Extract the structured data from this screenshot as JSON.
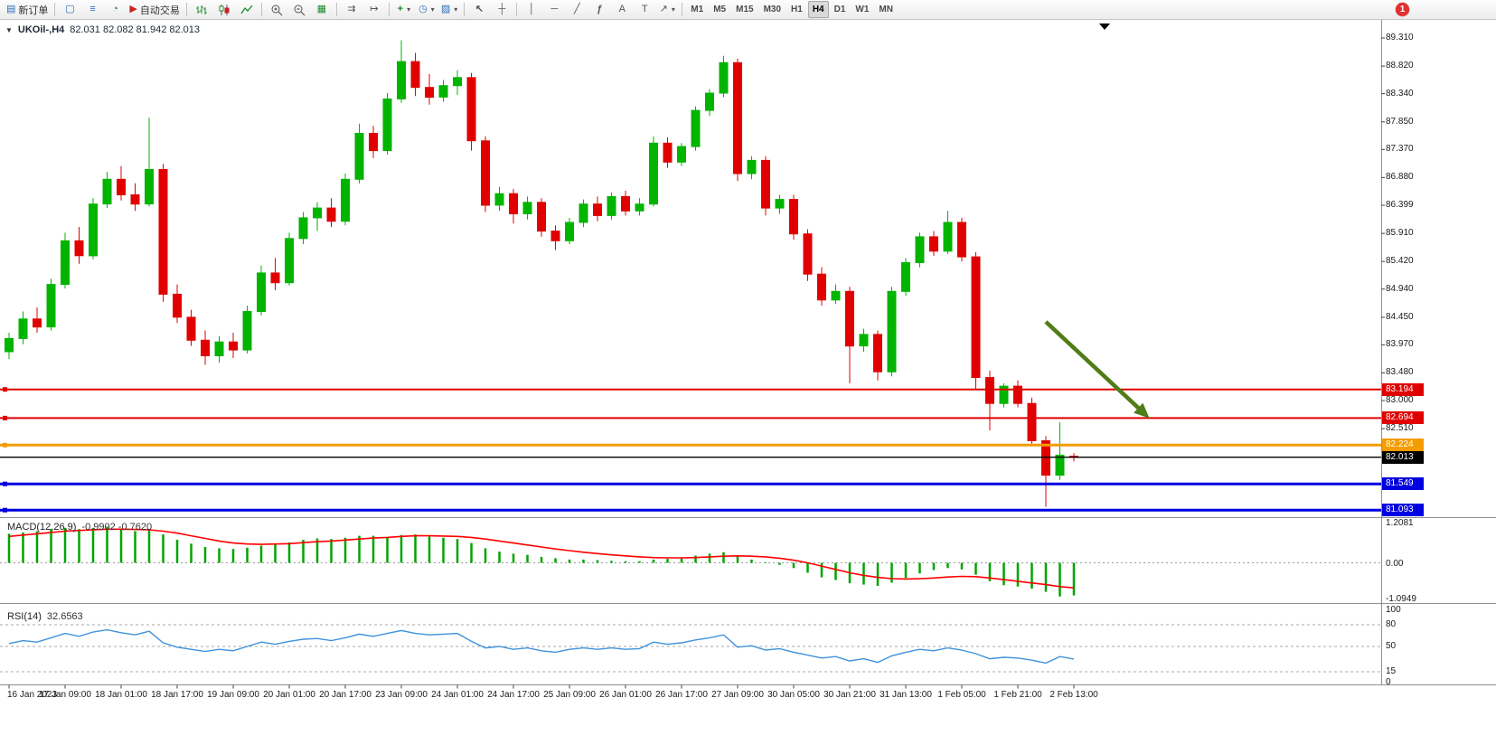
{
  "toolbar": {
    "new_order_label": "新订单",
    "auto_trading_label": "自动交易",
    "notification_badge": "1",
    "timeframes": [
      "M1",
      "M5",
      "M15",
      "M30",
      "H1",
      "H4",
      "D1",
      "W1",
      "MN"
    ],
    "active_timeframe": "H4",
    "icons": {
      "new_order": "▤",
      "chart_window": "▢",
      "accounts": "≡",
      "refresh": "◔",
      "play": "▶",
      "tile": "▦",
      "auto_scroll": "⇉",
      "chart_shift": "↦",
      "indicators_plus": "+",
      "clock": "◷",
      "template": "▨",
      "cursor": "↖",
      "crosshair": "┼",
      "vline": "│",
      "hline": "─",
      "trendline": "╱",
      "fibonacci": "ƒ",
      "text": "A",
      "text_label": "T",
      "arrow_tool": "↗",
      "caret": "▾"
    }
  },
  "chart": {
    "dropdown_marker": "▼",
    "title": "UKOil-,H4",
    "ohlc": "82.031 82.082 81.942 82.013"
  },
  "chart_data": {
    "type": "candlestick",
    "symbol": "UKOil-",
    "period": "H4",
    "current": {
      "open": 82.031,
      "high": 82.082,
      "low": 81.942,
      "close": 82.013
    },
    "up_color": "#00b400",
    "down_color": "#e00000",
    "y_axis_labels": [
      "89.310",
      "88.820",
      "88.340",
      "87.850",
      "87.370",
      "86.880",
      "86.399",
      "85.910",
      "85.420",
      "84.940",
      "84.450",
      "83.970",
      "83.480",
      "83.000",
      "82.510"
    ],
    "x_labels": [
      "16 Jan 2023",
      "17 Jan 09:00",
      "18 Jan 01:00",
      "18 Jan 17:00",
      "19 Jan 09:00",
      "20 Jan 01:00",
      "20 Jan 17:00",
      "23 Jan 09:00",
      "24 Jan 01:00",
      "24 Jan 17:00",
      "25 Jan 09:00",
      "26 Jan 01:00",
      "26 Jan 17:00",
      "27 Jan 09:00",
      "30 Jan 05:00",
      "30 Jan 21:00",
      "31 Jan 13:00",
      "1 Feb 05:00",
      "1 Feb 21:00",
      "2 Feb 13:00"
    ],
    "candles": [
      [
        83.85,
        84.18,
        83.72,
        84.08
      ],
      [
        84.08,
        84.55,
        83.98,
        84.42
      ],
      [
        84.42,
        84.62,
        84.18,
        84.28
      ],
      [
        84.28,
        85.12,
        84.22,
        85.02
      ],
      [
        85.02,
        85.92,
        84.95,
        85.78
      ],
      [
        85.78,
        86.02,
        85.38,
        85.52
      ],
      [
        85.52,
        86.52,
        85.46,
        86.42
      ],
      [
        86.42,
        86.98,
        86.35,
        86.85
      ],
      [
        86.85,
        87.08,
        86.48,
        86.58
      ],
      [
        86.58,
        86.78,
        86.3,
        86.42
      ],
      [
        86.42,
        87.92,
        86.38,
        87.02
      ],
      [
        87.02,
        87.12,
        84.72,
        84.85
      ],
      [
        84.85,
        85.02,
        84.35,
        84.45
      ],
      [
        84.45,
        84.58,
        83.95,
        84.05
      ],
      [
        84.05,
        84.22,
        83.62,
        83.78
      ],
      [
        83.78,
        84.12,
        83.66,
        84.02
      ],
      [
        84.02,
        84.18,
        83.74,
        83.88
      ],
      [
        83.88,
        84.65,
        83.82,
        84.55
      ],
      [
        84.55,
        85.35,
        84.48,
        85.22
      ],
      [
        85.22,
        85.48,
        84.92,
        85.05
      ],
      [
        85.05,
        85.92,
        85.0,
        85.82
      ],
      [
        85.82,
        86.28,
        85.72,
        86.18
      ],
      [
        86.18,
        86.45,
        85.95,
        86.35
      ],
      [
        86.35,
        86.52,
        86.02,
        86.12
      ],
      [
        86.12,
        86.95,
        86.05,
        86.85
      ],
      [
        86.85,
        87.82,
        86.78,
        87.65
      ],
      [
        87.65,
        87.78,
        87.22,
        87.35
      ],
      [
        87.35,
        88.35,
        87.28,
        88.25
      ],
      [
        88.25,
        89.27,
        88.18,
        88.9
      ],
      [
        88.9,
        89.05,
        88.3,
        88.45
      ],
      [
        88.45,
        88.68,
        88.15,
        88.28
      ],
      [
        88.28,
        88.58,
        88.2,
        88.48
      ],
      [
        88.48,
        88.75,
        88.32,
        88.62
      ],
      [
        88.62,
        88.7,
        87.35,
        87.52
      ],
      [
        87.52,
        87.6,
        86.28,
        86.4
      ],
      [
        86.4,
        86.72,
        86.3,
        86.6
      ],
      [
        86.6,
        86.68,
        86.08,
        86.25
      ],
      [
        86.25,
        86.55,
        86.15,
        86.45
      ],
      [
        86.45,
        86.52,
        85.85,
        85.95
      ],
      [
        85.95,
        86.05,
        85.62,
        85.78
      ],
      [
        85.78,
        86.18,
        85.72,
        86.1
      ],
      [
        86.1,
        86.5,
        86.02,
        86.42
      ],
      [
        86.42,
        86.55,
        86.12,
        86.22
      ],
      [
        86.22,
        86.62,
        86.15,
        86.55
      ],
      [
        86.55,
        86.65,
        86.22,
        86.3
      ],
      [
        86.3,
        86.52,
        86.22,
        86.42
      ],
      [
        86.42,
        87.6,
        86.38,
        87.48
      ],
      [
        87.48,
        87.58,
        87.05,
        87.15
      ],
      [
        87.15,
        87.48,
        87.08,
        87.42
      ],
      [
        87.42,
        88.12,
        87.35,
        88.05
      ],
      [
        88.05,
        88.42,
        87.95,
        88.35
      ],
      [
        88.35,
        89.0,
        88.28,
        88.88
      ],
      [
        88.88,
        88.95,
        86.82,
        86.95
      ],
      [
        86.95,
        87.25,
        86.85,
        87.18
      ],
      [
        87.18,
        87.25,
        86.22,
        86.35
      ],
      [
        86.35,
        86.58,
        86.25,
        86.5
      ],
      [
        86.5,
        86.58,
        85.8,
        85.9
      ],
      [
        85.9,
        85.98,
        85.08,
        85.2
      ],
      [
        85.2,
        85.32,
        84.65,
        84.75
      ],
      [
        84.75,
        85.02,
        84.68,
        84.9
      ],
      [
        84.9,
        84.98,
        83.3,
        83.95
      ],
      [
        83.95,
        84.25,
        83.85,
        84.15
      ],
      [
        84.15,
        84.22,
        83.35,
        83.5
      ],
      [
        83.5,
        84.98,
        83.42,
        84.9
      ],
      [
        84.9,
        85.48,
        84.82,
        85.4
      ],
      [
        85.4,
        85.92,
        85.32,
        85.85
      ],
      [
        85.85,
        85.95,
        85.52,
        85.6
      ],
      [
        85.6,
        86.3,
        85.55,
        86.1
      ],
      [
        86.1,
        86.18,
        85.42,
        85.5
      ],
      [
        85.5,
        85.58,
        83.2,
        83.4
      ],
      [
        83.4,
        83.52,
        82.48,
        82.95
      ],
      [
        82.95,
        83.3,
        82.88,
        83.25
      ],
      [
        83.25,
        83.35,
        82.88,
        82.95
      ],
      [
        82.95,
        83.05,
        82.22,
        82.3
      ],
      [
        82.3,
        82.38,
        81.15,
        81.7
      ],
      [
        81.7,
        82.62,
        81.62,
        82.05
      ],
      [
        82.031,
        82.082,
        81.942,
        82.013
      ]
    ],
    "hlines": [
      {
        "price": 83.194,
        "label": "83.194",
        "color": "#e00000",
        "width": 2
      },
      {
        "price": 82.694,
        "label": "82.694",
        "color": "#e00000",
        "width": 2
      },
      {
        "price": 82.224,
        "label": "82.224",
        "color": "#f49c00",
        "width": 3
      },
      {
        "price": 81.549,
        "label": "81.549",
        "color": "#0000e0",
        "width": 3
      },
      {
        "price": 81.093,
        "label": "81.093",
        "color": "#0000e0",
        "width": 3
      }
    ],
    "current_price": {
      "value": 82.013,
      "label": "82.013",
      "color": "#000000"
    },
    "trend_arrow": {
      "from_bar": 74,
      "from_price": 84.37,
      "to_bar": 81.4,
      "to_price": 82.69,
      "color": "#4f7d18"
    },
    "macd": {
      "name": "MACD(12,26,9)",
      "values_text": "-0.9902 -0.7620",
      "macd_value": -0.9902,
      "signal_value": -0.762,
      "axis": [
        {
          "text": "1.2081",
          "value": 1.2081
        },
        {
          "text": "0.00",
          "value": 0
        },
        {
          "text": "-1.0949",
          "value": -1.0949
        }
      ],
      "histogram_color": "#00a400",
      "signal_color": "#ff0000",
      "histogram": [
        0.88,
        0.92,
        0.96,
        1.02,
        1.06,
        1.02,
        1.06,
        1.1,
        1.02,
        0.96,
        1.0,
        0.86,
        0.7,
        0.58,
        0.48,
        0.44,
        0.42,
        0.46,
        0.52,
        0.56,
        0.62,
        0.7,
        0.74,
        0.72,
        0.76,
        0.82,
        0.82,
        0.78,
        0.84,
        0.86,
        0.8,
        0.76,
        0.72,
        0.6,
        0.44,
        0.34,
        0.28,
        0.24,
        0.18,
        0.14,
        0.1,
        0.1,
        0.08,
        0.06,
        0.05,
        0.05,
        0.1,
        0.12,
        0.16,
        0.22,
        0.28,
        0.32,
        0.2,
        0.1,
        0.02,
        -0.06,
        -0.16,
        -0.3,
        -0.44,
        -0.52,
        -0.62,
        -0.66,
        -0.7,
        -0.6,
        -0.46,
        -0.32,
        -0.22,
        -0.16,
        -0.2,
        -0.36,
        -0.56,
        -0.68,
        -0.72,
        -0.78,
        -0.88,
        -1.02,
        -0.99
      ],
      "signal": [
        0.8,
        0.84,
        0.88,
        0.92,
        0.96,
        0.98,
        1.0,
        1.02,
        1.02,
        1.01,
        1.0,
        0.96,
        0.9,
        0.82,
        0.74,
        0.66,
        0.6,
        0.57,
        0.56,
        0.57,
        0.58,
        0.61,
        0.64,
        0.66,
        0.69,
        0.72,
        0.75,
        0.77,
        0.8,
        0.82,
        0.82,
        0.81,
        0.8,
        0.77,
        0.72,
        0.66,
        0.6,
        0.54,
        0.48,
        0.42,
        0.37,
        0.32,
        0.28,
        0.24,
        0.21,
        0.18,
        0.16,
        0.15,
        0.15,
        0.16,
        0.18,
        0.2,
        0.21,
        0.2,
        0.18,
        0.14,
        0.08,
        0.0,
        -0.1,
        -0.2,
        -0.3,
        -0.38,
        -0.44,
        -0.48,
        -0.49,
        -0.48,
        -0.46,
        -0.43,
        -0.41,
        -0.42,
        -0.46,
        -0.51,
        -0.56,
        -0.61,
        -0.66,
        -0.72,
        -0.76
      ]
    },
    "rsi": {
      "name": "RSI(14)",
      "value_text": "32.6563",
      "value": 32.6563,
      "line_color": "#3f92dc",
      "axis": [
        {
          "text": "100",
          "value": 100
        },
        {
          "text": "80",
          "value": 80
        },
        {
          "text": "50",
          "value": 50
        },
        {
          "text": "15",
          "value": 15
        },
        {
          "text": "0",
          "value": 0
        }
      ],
      "levels": [
        80,
        50,
        15
      ],
      "values": [
        54,
        58,
        56,
        62,
        68,
        64,
        70,
        73,
        69,
        66,
        71,
        55,
        49,
        46,
        43,
        46,
        44,
        50,
        56,
        53,
        57,
        60,
        61,
        58,
        62,
        67,
        64,
        68,
        72,
        68,
        66,
        67,
        68,
        57,
        48,
        50,
        46,
        48,
        44,
        42,
        46,
        48,
        46,
        48,
        46,
        47,
        56,
        53,
        55,
        59,
        62,
        66,
        49,
        51,
        45,
        47,
        42,
        38,
        34,
        36,
        30,
        33,
        28,
        37,
        42,
        46,
        44,
        48,
        45,
        40,
        33,
        35,
        34,
        31,
        27,
        36,
        32.66
      ]
    }
  }
}
